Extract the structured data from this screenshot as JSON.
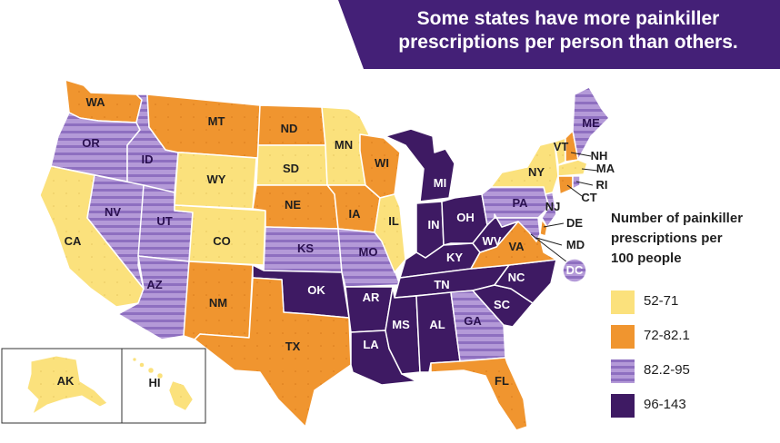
{
  "title": {
    "line1": "Some states have more painkiller",
    "line2": "prescriptions per person than others."
  },
  "legend": {
    "title_line1": "Number of painkiller",
    "title_line2": "prescriptions per",
    "title_line3": "100 people",
    "items": [
      {
        "label": "52-71",
        "color": "#fbe17c",
        "pattern": "solid"
      },
      {
        "label": "72-82.1",
        "color": "#f0952f",
        "pattern": "solid"
      },
      {
        "label": "82.2-95",
        "color": "#a98bd0",
        "pattern": "striped"
      },
      {
        "label": "96-143",
        "color": "#3e1a63",
        "pattern": "solid"
      }
    ]
  },
  "colors": {
    "banner": "#442077",
    "low": "#fbe17c",
    "mid_low": "#f0952f",
    "mid_high_base": "#b49ad8",
    "mid_high_stripe": "#8e6fc0",
    "high": "#3e1a63",
    "border": "#ffffff"
  },
  "states": {
    "WA": {
      "label": "WA",
      "bin": 1
    },
    "OR": {
      "label": "OR",
      "bin": 2
    },
    "CA": {
      "label": "CA",
      "bin": 0
    },
    "ID": {
      "label": "ID",
      "bin": 2
    },
    "NV": {
      "label": "NV",
      "bin": 2
    },
    "UT": {
      "label": "UT",
      "bin": 2
    },
    "AZ": {
      "label": "AZ",
      "bin": 2
    },
    "MT": {
      "label": "MT",
      "bin": 1
    },
    "WY": {
      "label": "WY",
      "bin": 0
    },
    "CO": {
      "label": "CO",
      "bin": 0
    },
    "NM": {
      "label": "NM",
      "bin": 1
    },
    "ND": {
      "label": "ND",
      "bin": 1
    },
    "SD": {
      "label": "SD",
      "bin": 0
    },
    "NE": {
      "label": "NE",
      "bin": 1
    },
    "KS": {
      "label": "KS",
      "bin": 2
    },
    "OK": {
      "label": "OK",
      "bin": 3
    },
    "TX": {
      "label": "TX",
      "bin": 1
    },
    "MN": {
      "label": "MN",
      "bin": 0
    },
    "IA": {
      "label": "IA",
      "bin": 1
    },
    "MO": {
      "label": "MO",
      "bin": 2
    },
    "AR": {
      "label": "AR",
      "bin": 3
    },
    "LA": {
      "label": "LA",
      "bin": 3
    },
    "WI": {
      "label": "WI",
      "bin": 1
    },
    "IL": {
      "label": "IL",
      "bin": 0
    },
    "MI": {
      "label": "MI",
      "bin": 3
    },
    "IN": {
      "label": "IN",
      "bin": 3
    },
    "OH": {
      "label": "OH",
      "bin": 3
    },
    "KY": {
      "label": "KY",
      "bin": 3
    },
    "TN": {
      "label": "TN",
      "bin": 3
    },
    "MS": {
      "label": "MS",
      "bin": 3
    },
    "AL": {
      "label": "AL",
      "bin": 3
    },
    "GA": {
      "label": "GA",
      "bin": 2
    },
    "FL": {
      "label": "FL",
      "bin": 1
    },
    "SC": {
      "label": "SC",
      "bin": 3
    },
    "NC": {
      "label": "NC",
      "bin": 3
    },
    "VA": {
      "label": "VA",
      "bin": 1
    },
    "WV": {
      "label": "WV",
      "bin": 3
    },
    "PA": {
      "label": "PA",
      "bin": 2
    },
    "NY": {
      "label": "NY",
      "bin": 0
    },
    "VT": {
      "label": "VT",
      "bin": 0
    },
    "ME": {
      "label": "ME",
      "bin": 2
    },
    "NH": {
      "label": "NH",
      "bin": 1
    },
    "MA": {
      "label": "MA",
      "bin": 0
    },
    "RI": {
      "label": "RI",
      "bin": 2
    },
    "CT": {
      "label": "CT",
      "bin": 1
    },
    "NJ": {
      "label": "NJ",
      "bin": 2
    },
    "DE": {
      "label": "DE",
      "bin": 1
    },
    "MD": {
      "label": "MD",
      "bin": 2
    },
    "DC": {
      "label": "DC",
      "bin": 2
    },
    "AK": {
      "label": "AK",
      "bin": 0
    },
    "HI": {
      "label": "HI",
      "bin": 0
    }
  }
}
